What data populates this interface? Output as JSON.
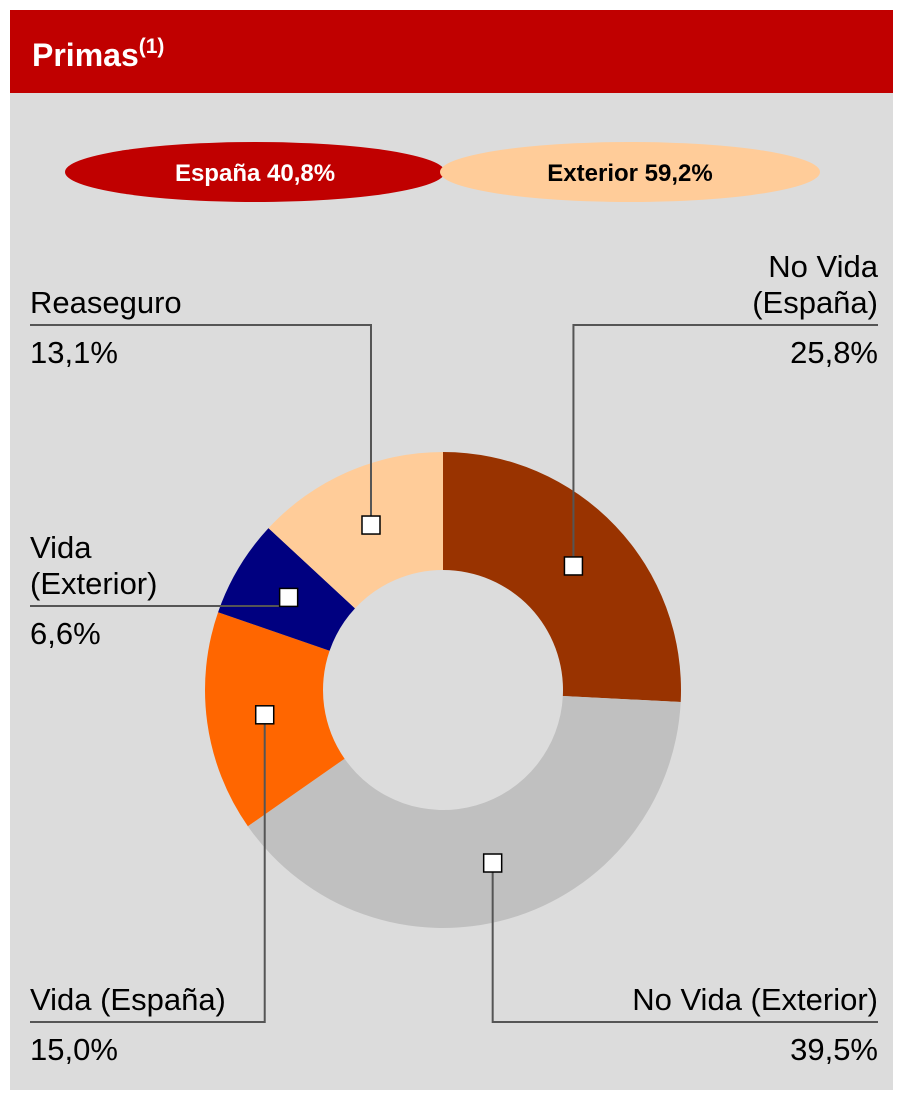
{
  "chart_data": {
    "type": "donut",
    "title": "Primas",
    "title_note": "(1)",
    "annotations": [
      {
        "label": "España 40,8%",
        "color": "#c00000"
      },
      {
        "label": "Exterior 59,2%",
        "color": "#ffcc99"
      }
    ],
    "categories": [
      "No Vida (España)",
      "No Vida (Exterior)",
      "Vida (España)",
      "Vida (Exterior)",
      "Reaseguro"
    ],
    "values": [
      25.8,
      39.5,
      15.0,
      6.6,
      13.1
    ],
    "value_labels": [
      "25,8%",
      "39,5%",
      "15,0%",
      "6,6%",
      "13,1%"
    ],
    "colors": [
      "#993300",
      "#c0c0c0",
      "#ff6600",
      "#000080",
      "#ffcc99"
    ]
  }
}
